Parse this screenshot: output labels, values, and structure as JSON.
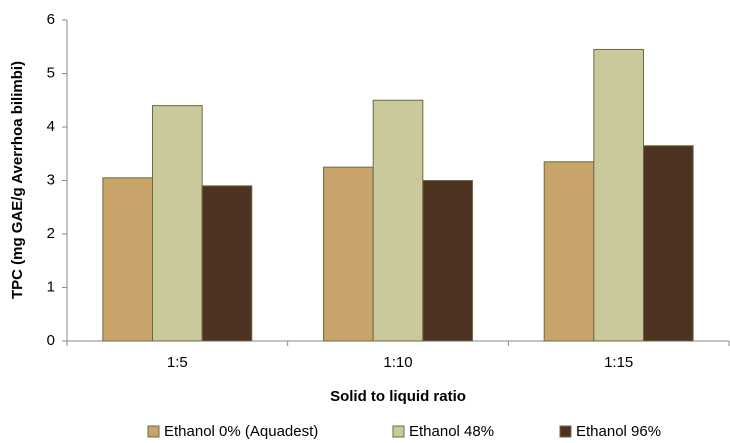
{
  "chart_data": {
    "type": "bar",
    "y_label": "TPC (mg GAE/g Averrhoa bilimbi)",
    "x_label": "Solid to liquid ratio",
    "categories": [
      "1:5",
      "1:10",
      "1:15"
    ],
    "series": [
      {
        "name": "Ethanol 0% (Aquadest)",
        "color": "#c9a46a",
        "values": [
          3.05,
          3.25,
          3.35
        ]
      },
      {
        "name": "Ethanol 48%",
        "color": "#c9c99b",
        "values": [
          4.4,
          4.5,
          5.45
        ]
      },
      {
        "name": "Ethanol 96%",
        "color": "#4e3222",
        "values": [
          2.9,
          3.0,
          3.65
        ]
      }
    ],
    "ylim": [
      0,
      6
    ],
    "yticks": [
      0,
      1,
      2,
      3,
      4,
      5,
      6
    ],
    "grid": false,
    "legend": "bottom"
  }
}
